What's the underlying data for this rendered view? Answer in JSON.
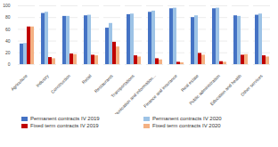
{
  "chart_data": {
    "type": "bar",
    "categories": [
      "Agriculture",
      "Industry",
      "Construction",
      "Retail",
      "Restaurants",
      "Transportations",
      "Communication and information...",
      "Finance and insurance",
      "Real estate",
      "Public administration",
      "Education and health",
      "Other services"
    ],
    "series": [
      {
        "name": "Permanent contracts  IV 2019",
        "color": "#4472c4",
        "values": [
          35,
          87,
          82,
          83,
          62,
          85,
          89,
          95,
          80,
          95,
          83,
          84
        ]
      },
      {
        "name": "Permanent contracts  IV 2020",
        "color": "#9dc3e6",
        "values": [
          36,
          89,
          82,
          84,
          70,
          86,
          91,
          96,
          83,
          96,
          82,
          86
        ]
      },
      {
        "name": "Fixed term contracts  IV 2019",
        "color": "#c00000",
        "values": [
          64,
          12,
          18,
          16,
          38,
          15,
          10,
          4,
          19,
          5,
          16,
          15
        ]
      },
      {
        "name": "Fixed term contracts  IV 2020",
        "color": "#f4b183",
        "values": [
          64,
          10,
          17,
          15,
          30,
          13,
          8,
          3,
          16,
          4,
          17,
          13
        ]
      }
    ],
    "ylim": [
      0,
      100
    ],
    "yticks": [
      0,
      20,
      40,
      60,
      80,
      100
    ],
    "grid": true,
    "legend": "bottom"
  }
}
